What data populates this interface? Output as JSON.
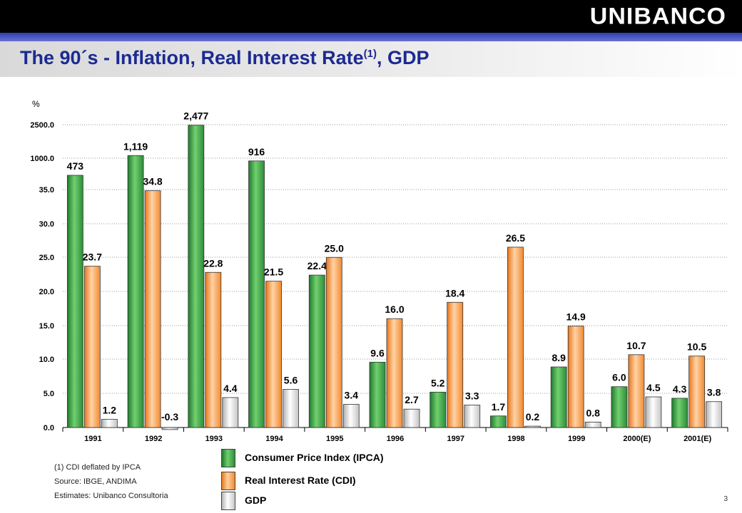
{
  "header": {
    "logo_text": "UNIBANCO"
  },
  "title": {
    "main": "The 90´s - Inflation, Real Interest Rate",
    "superscript": "(1)",
    "suffix": ", GDP"
  },
  "colors": {
    "ipca": "#3fa04a",
    "cdi": "#ff9f4a",
    "gdp": "#e0e0e0",
    "title": "#1c2a93",
    "stripe": "#3a48c0"
  },
  "chart_data": {
    "type": "bar",
    "ylabel": "%",
    "categories": [
      "1991",
      "1992",
      "1993",
      "1994",
      "1995",
      "1996",
      "1997",
      "1998",
      "1999",
      "2000(E)",
      "2001(E)"
    ],
    "y_axis_ticks": [
      "0.0",
      "5.0",
      "10.0",
      "15.0",
      "20.0",
      "25.0",
      "30.0",
      "35.0",
      "1000.0",
      "2500.0"
    ],
    "broken_axis": true,
    "grid": true,
    "series": [
      {
        "name": "Consumer Price Index (IPCA)",
        "key": "ipca",
        "values": [
          473,
          1119,
          2477,
          916,
          22.4,
          9.6,
          5.2,
          1.7,
          8.9,
          6.0,
          4.3
        ],
        "labels": [
          "473",
          "1,119",
          "2,477",
          "916",
          "22.4",
          "9.6",
          "5.2",
          "1.7",
          "8.9",
          "6.0",
          "4.3"
        ]
      },
      {
        "name": "Real Interest Rate (CDI)",
        "key": "cdi",
        "values": [
          23.7,
          34.8,
          22.8,
          21.5,
          25.0,
          16.0,
          18.4,
          26.5,
          14.9,
          10.7,
          10.5
        ],
        "labels": [
          "23.7",
          "34.8",
          "22.8",
          "21.5",
          "25.0",
          "16.0",
          "18.4",
          "26.5",
          "14.9",
          "10.7",
          "10.5"
        ]
      },
      {
        "name": "GDP",
        "key": "gdp",
        "values": [
          1.2,
          -0.3,
          4.4,
          5.6,
          3.4,
          2.7,
          3.3,
          0.2,
          0.8,
          4.5,
          3.8
        ],
        "labels": [
          "1.2",
          "-0.3",
          "4.4",
          "5.6",
          "3.4",
          "2.7",
          "3.3",
          "0.2",
          "0.8",
          "4.5",
          "3.8"
        ]
      }
    ]
  },
  "legend": {
    "items": [
      {
        "label": "Consumer Price Index (IPCA)"
      },
      {
        "label": "Real Interest Rate (CDI)"
      },
      {
        "label": "GDP"
      }
    ]
  },
  "notes": {
    "footnote": "(1) CDI deflated by IPCA",
    "source": "Source: IBGE, ANDIMA",
    "estimates": "Estimates: Unibanco Consultoria"
  },
  "page_number": "3"
}
